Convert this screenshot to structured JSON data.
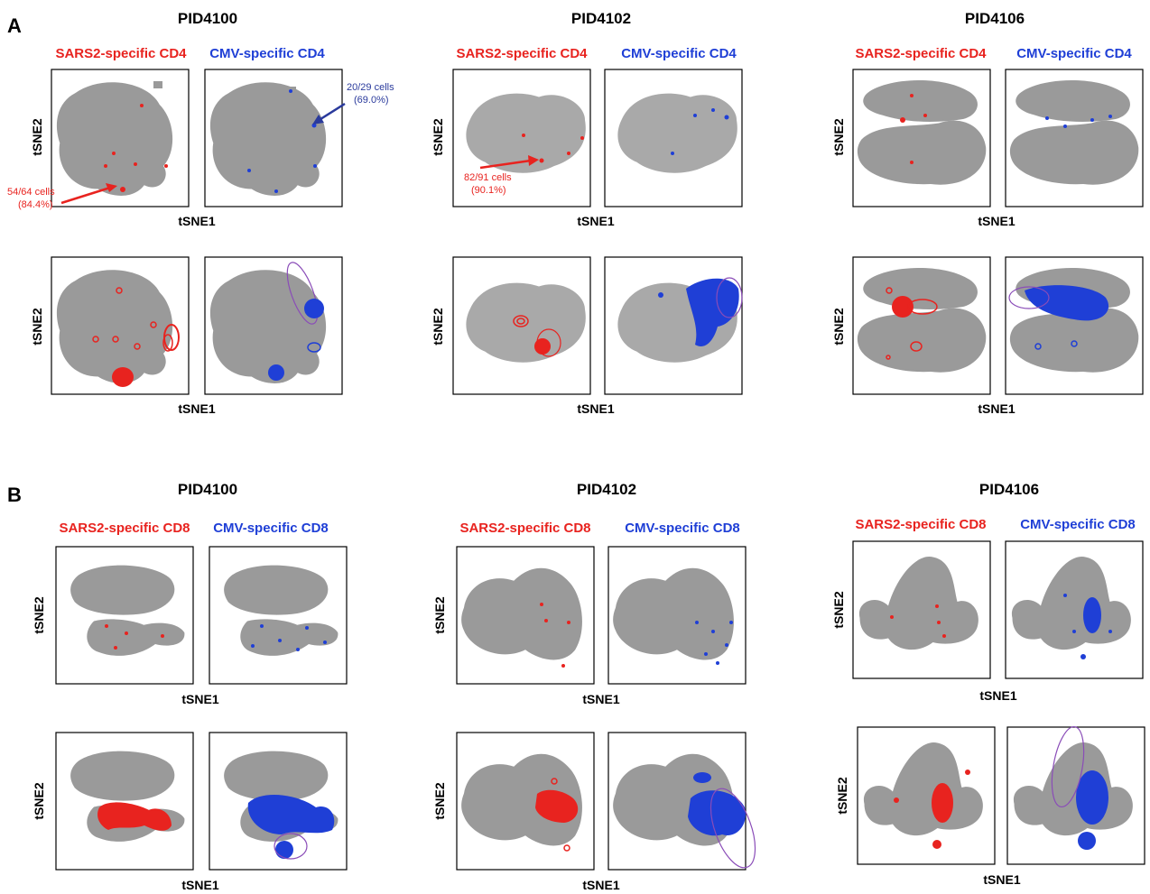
{
  "panels": {
    "A": "A",
    "B": "B"
  },
  "patients": [
    "PID4100",
    "PID4102",
    "PID4106"
  ],
  "headers": {
    "a_sars": "SARS2-specific CD4",
    "a_cmv": "CMV-specific CD4",
    "b_sars": "SARS2-specific CD8",
    "b_cmv": "CMV-specific CD8"
  },
  "axes": {
    "x": "tSNE1",
    "y": "tSNE2"
  },
  "annotations": {
    "pid4100_sars_cells": "54/64 cells",
    "pid4100_sars_pct": "(84.4%)",
    "pid4100_cmv_cells": "20/29 cells",
    "pid4100_cmv_pct": "(69.0%)",
    "pid4102_sars_cells": "82/91 cells",
    "pid4102_sars_pct": "(90.1%)"
  },
  "colors": {
    "sars": "#e8231f",
    "cmv": "#1f3fd6",
    "background_cells": "#9a9a9a",
    "gate": "#8a4cb8",
    "cmv_text": "#2a3a9c"
  },
  "chart_data": {
    "type": "scatter",
    "description_of_series": [
      "SARS2-specific",
      "CMV-specific"
    ],
    "xlabel": "tSNE1",
    "ylabel": "tSNE2"
  }
}
